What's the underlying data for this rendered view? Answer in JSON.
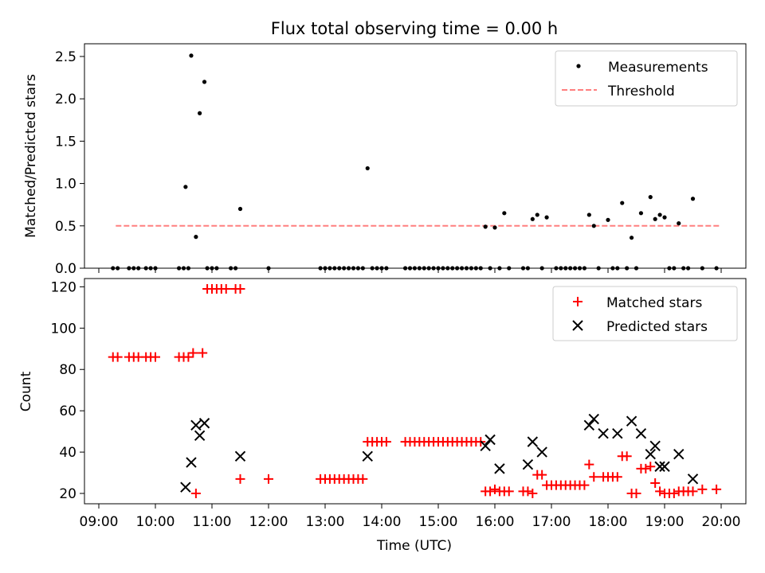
{
  "chart_data": {
    "title": "Flux total observing time = 0.00 h",
    "xlabel": "Time (UTC)",
    "x_ticks": [
      "09:00",
      "10:00",
      "11:00",
      "12:00",
      "13:00",
      "14:00",
      "15:00",
      "16:00",
      "17:00",
      "18:00",
      "19:00",
      "20:00"
    ],
    "colors": {
      "measurements": "#000000",
      "threshold": "#ff7f7f",
      "matched": "#ff0000",
      "predicted": "#000000"
    },
    "panels": [
      {
        "type": "scatter",
        "ylabel": "Matched/Predicted stars",
        "ylim": [
          0,
          2.65
        ],
        "y_ticks": [
          "0.0",
          "0.5",
          "1.0",
          "1.5",
          "2.0",
          "2.5"
        ],
        "legend_placement": "top-right",
        "series": [
          {
            "name": "Measurements",
            "marker": "dot",
            "points": [
              [
                "09:15",
                0
              ],
              [
                "09:20",
                0
              ],
              [
                "09:32",
                0
              ],
              [
                "09:37",
                0
              ],
              [
                "09:42",
                0
              ],
              [
                "09:50",
                0
              ],
              [
                "09:55",
                0
              ],
              [
                "10:00",
                0
              ],
              [
                "10:25",
                0
              ],
              [
                "10:30",
                0
              ],
              [
                "10:35",
                0
              ],
              [
                "10:32",
                0.96
              ],
              [
                "10:38",
                2.51
              ],
              [
                "10:43",
                0.37
              ],
              [
                "10:47",
                1.83
              ],
              [
                "10:52",
                2.2
              ],
              [
                "10:55",
                0
              ],
              [
                "11:00",
                0
              ],
              [
                "11:05",
                0
              ],
              [
                "11:20",
                0
              ],
              [
                "11:25",
                0
              ],
              [
                "11:30",
                0.7
              ],
              [
                "12:00",
                0
              ],
              [
                "12:55",
                0
              ],
              [
                "13:00",
                0
              ],
              [
                "13:05",
                0
              ],
              [
                "13:10",
                0
              ],
              [
                "13:15",
                0
              ],
              [
                "13:20",
                0
              ],
              [
                "13:25",
                0
              ],
              [
                "13:30",
                0
              ],
              [
                "13:35",
                0
              ],
              [
                "13:40",
                0
              ],
              [
                "13:45",
                1.18
              ],
              [
                "13:50",
                0
              ],
              [
                "13:55",
                0
              ],
              [
                "14:00",
                0
              ],
              [
                "14:05",
                0
              ],
              [
                "14:25",
                0
              ],
              [
                "14:30",
                0
              ],
              [
                "14:35",
                0
              ],
              [
                "14:40",
                0
              ],
              [
                "14:45",
                0
              ],
              [
                "14:50",
                0
              ],
              [
                "14:55",
                0
              ],
              [
                "15:00",
                0
              ],
              [
                "15:05",
                0
              ],
              [
                "15:10",
                0
              ],
              [
                "15:15",
                0
              ],
              [
                "15:20",
                0
              ],
              [
                "15:25",
                0
              ],
              [
                "15:30",
                0
              ],
              [
                "15:35",
                0
              ],
              [
                "15:40",
                0
              ],
              [
                "15:45",
                0
              ],
              [
                "15:50",
                0.49
              ],
              [
                "15:55",
                0
              ],
              [
                "16:00",
                0.48
              ],
              [
                "16:05",
                0
              ],
              [
                "16:10",
                0.65
              ],
              [
                "16:15",
                0
              ],
              [
                "16:30",
                0
              ],
              [
                "16:35",
                0
              ],
              [
                "16:40",
                0.58
              ],
              [
                "16:45",
                0.63
              ],
              [
                "16:50",
                0
              ],
              [
                "16:55",
                0.6
              ],
              [
                "17:05",
                0
              ],
              [
                "17:10",
                0
              ],
              [
                "17:15",
                0
              ],
              [
                "17:20",
                0
              ],
              [
                "17:25",
                0
              ],
              [
                "17:30",
                0
              ],
              [
                "17:35",
                0
              ],
              [
                "17:40",
                0.63
              ],
              [
                "17:45",
                0.5
              ],
              [
                "17:50",
                0
              ],
              [
                "18:00",
                0.57
              ],
              [
                "18:05",
                0
              ],
              [
                "18:10",
                0
              ],
              [
                "18:15",
                0.77
              ],
              [
                "18:20",
                0
              ],
              [
                "18:25",
                0.36
              ],
              [
                "18:30",
                0
              ],
              [
                "18:35",
                0.65
              ],
              [
                "18:45",
                0.84
              ],
              [
                "18:50",
                0.58
              ],
              [
                "18:55",
                0.63
              ],
              [
                "19:00",
                0.6
              ],
              [
                "19:05",
                0
              ],
              [
                "19:10",
                0
              ],
              [
                "19:15",
                0.53
              ],
              [
                "19:20",
                0
              ],
              [
                "19:25",
                0
              ],
              [
                "19:30",
                0.82
              ],
              [
                "19:40",
                0
              ],
              [
                "19:55",
                0
              ]
            ]
          },
          {
            "name": "Threshold",
            "marker": "dashed-line",
            "points": [
              [
                "09:18",
                0.5
              ],
              [
                "19:58",
                0.5
              ]
            ]
          }
        ]
      },
      {
        "type": "scatter",
        "ylabel": "Count",
        "ylim": [
          15,
          124
        ],
        "y_ticks": [
          "20",
          "40",
          "60",
          "80",
          "100",
          "120"
        ],
        "legend_placement": "top-right",
        "series": [
          {
            "name": "Matched stars",
            "marker": "plus",
            "points": [
              [
                "09:15",
                86
              ],
              [
                "09:20",
                86
              ],
              [
                "09:32",
                86
              ],
              [
                "09:37",
                86
              ],
              [
                "09:42",
                86
              ],
              [
                "09:50",
                86
              ],
              [
                "09:55",
                86
              ],
              [
                "10:00",
                86
              ],
              [
                "10:25",
                86
              ],
              [
                "10:30",
                86
              ],
              [
                "10:35",
                86
              ],
              [
                "10:40",
                88
              ],
              [
                "10:43",
                20
              ],
              [
                "10:50",
                88
              ],
              [
                "10:55",
                119
              ],
              [
                "11:00",
                119
              ],
              [
                "11:05",
                119
              ],
              [
                "11:10",
                119
              ],
              [
                "11:15",
                119
              ],
              [
                "11:25",
                119
              ],
              [
                "11:30",
                119
              ],
              [
                "11:30",
                27
              ],
              [
                "12:00",
                27
              ],
              [
                "12:55",
                27
              ],
              [
                "13:00",
                27
              ],
              [
                "13:05",
                27
              ],
              [
                "13:10",
                27
              ],
              [
                "13:15",
                27
              ],
              [
                "13:20",
                27
              ],
              [
                "13:25",
                27
              ],
              [
                "13:30",
                27
              ],
              [
                "13:35",
                27
              ],
              [
                "13:40",
                27
              ],
              [
                "13:45",
                45
              ],
              [
                "13:50",
                45
              ],
              [
                "13:55",
                45
              ],
              [
                "14:00",
                45
              ],
              [
                "14:05",
                45
              ],
              [
                "14:25",
                45
              ],
              [
                "14:30",
                45
              ],
              [
                "14:35",
                45
              ],
              [
                "14:40",
                45
              ],
              [
                "14:45",
                45
              ],
              [
                "14:50",
                45
              ],
              [
                "14:55",
                45
              ],
              [
                "15:00",
                45
              ],
              [
                "15:05",
                45
              ],
              [
                "15:10",
                45
              ],
              [
                "15:15",
                45
              ],
              [
                "15:20",
                45
              ],
              [
                "15:25",
                45
              ],
              [
                "15:30",
                45
              ],
              [
                "15:35",
                45
              ],
              [
                "15:40",
                45
              ],
              [
                "15:45",
                45
              ],
              [
                "15:50",
                21
              ],
              [
                "15:55",
                21
              ],
              [
                "16:00",
                22
              ],
              [
                "16:05",
                21
              ],
              [
                "16:10",
                21
              ],
              [
                "16:15",
                21
              ],
              [
                "16:30",
                21
              ],
              [
                "16:35",
                21
              ],
              [
                "16:40",
                20
              ],
              [
                "16:45",
                29
              ],
              [
                "16:50",
                29
              ],
              [
                "16:55",
                24
              ],
              [
                "17:00",
                24
              ],
              [
                "17:05",
                24
              ],
              [
                "17:10",
                24
              ],
              [
                "17:15",
                24
              ],
              [
                "17:20",
                24
              ],
              [
                "17:25",
                24
              ],
              [
                "17:30",
                24
              ],
              [
                "17:35",
                24
              ],
              [
                "17:40",
                34
              ],
              [
                "17:45",
                28
              ],
              [
                "17:55",
                28
              ],
              [
                "18:00",
                28
              ],
              [
                "18:05",
                28
              ],
              [
                "18:10",
                28
              ],
              [
                "18:15",
                38
              ],
              [
                "18:20",
                38
              ],
              [
                "18:25",
                20
              ],
              [
                "18:30",
                20
              ],
              [
                "18:35",
                32
              ],
              [
                "18:40",
                32
              ],
              [
                "18:45",
                33
              ],
              [
                "18:50",
                25
              ],
              [
                "18:55",
                21
              ],
              [
                "19:00",
                20
              ],
              [
                "19:05",
                20
              ],
              [
                "19:10",
                20
              ],
              [
                "19:15",
                21
              ],
              [
                "19:20",
                21
              ],
              [
                "19:25",
                21
              ],
              [
                "19:30",
                21
              ],
              [
                "19:40",
                22
              ],
              [
                "19:55",
                22
              ]
            ]
          },
          {
            "name": "Predicted stars",
            "marker": "x",
            "points": [
              [
                "10:32",
                23
              ],
              [
                "10:38",
                35
              ],
              [
                "10:43",
                53
              ],
              [
                "10:47",
                48
              ],
              [
                "10:52",
                54
              ],
              [
                "11:30",
                38
              ],
              [
                "13:45",
                38
              ],
              [
                "15:50",
                43
              ],
              [
                "15:55",
                46
              ],
              [
                "16:05",
                32
              ],
              [
                "16:35",
                34
              ],
              [
                "16:40",
                45
              ],
              [
                "16:50",
                40
              ],
              [
                "17:40",
                53
              ],
              [
                "17:45",
                56
              ],
              [
                "17:55",
                49
              ],
              [
                "18:10",
                49
              ],
              [
                "18:25",
                55
              ],
              [
                "18:35",
                49
              ],
              [
                "18:45",
                39
              ],
              [
                "18:50",
                43
              ],
              [
                "18:55",
                33
              ],
              [
                "19:00",
                33
              ],
              [
                "19:15",
                39
              ],
              [
                "19:30",
                27
              ]
            ]
          }
        ]
      }
    ]
  }
}
